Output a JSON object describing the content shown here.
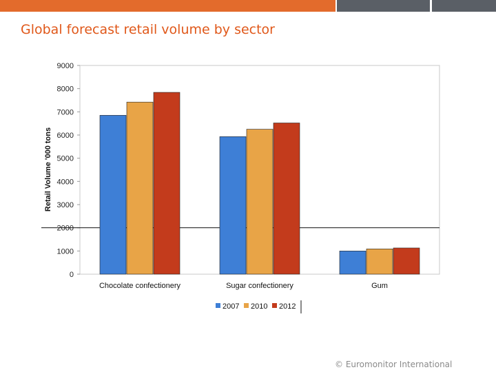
{
  "header": {
    "title": "Global forecast retail volume by sector"
  },
  "footer": {
    "copyright": "© Euromonitor International"
  },
  "colors": {
    "accent": "#e36b2c",
    "series_2007": "#3e7fd6",
    "series_2010": "#e8a447",
    "series_2012": "#c33b1c"
  },
  "chart_data": {
    "type": "bar",
    "title": "",
    "xlabel": "",
    "ylabel": "Retail Volume '000 tons",
    "categories": [
      "Chocolate confectionery",
      "Sugar confectionery",
      "Gum"
    ],
    "series": [
      {
        "name": "2007",
        "color": "#3e7fd6",
        "values": [
          6850,
          5930,
          1000
        ]
      },
      {
        "name": "2010",
        "color": "#e8a447",
        "values": [
          7420,
          6250,
          1090
        ]
      },
      {
        "name": "2012",
        "color": "#c33b1c",
        "values": [
          7840,
          6520,
          1130
        ]
      }
    ],
    "ylim": [
      0,
      9000
    ],
    "yticks": [
      0,
      1000,
      2000,
      3000,
      4000,
      5000,
      6000,
      7000,
      8000,
      9000
    ],
    "reference_line": 2000,
    "grid": false,
    "legend": "bottom-center"
  }
}
